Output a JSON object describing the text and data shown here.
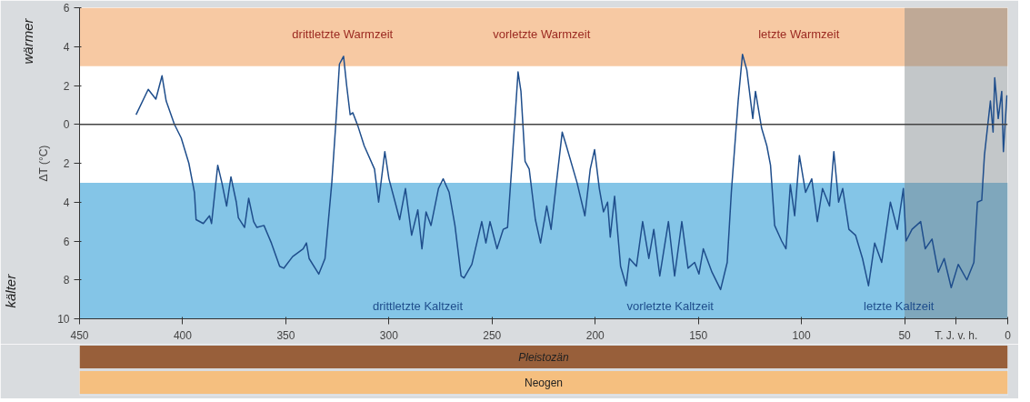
{
  "chart_data": {
    "type": "line",
    "ylabel": "ΔT (°C)",
    "x": [
      422.6,
      416.7,
      413,
      410,
      408,
      404,
      400.7,
      397,
      394.3,
      393.5,
      390,
      387,
      386,
      383,
      381,
      378.7,
      376.6,
      374,
      373,
      370,
      368,
      365.6,
      364,
      360.6,
      357,
      353,
      351,
      346.7,
      341.6,
      340,
      338.7,
      334,
      331,
      327.7,
      325.6,
      324,
      322,
      320.5,
      318.8,
      317.5,
      315,
      312,
      307,
      305,
      302,
      300,
      297,
      294.8,
      292,
      289,
      286,
      284,
      282,
      279.6,
      276,
      273.7,
      270.8,
      268,
      265,
      263.6,
      259.8,
      255,
      253,
      251,
      247.6,
      244.6,
      242.5,
      240.4,
      237.4,
      236,
      234,
      232,
      229,
      226.5,
      223.5,
      221.4,
      216,
      214,
      208.8,
      205,
      202.4,
      200.3,
      198,
      196,
      194,
      192.7,
      190.6,
      187.7,
      185,
      183.4,
      180,
      177,
      174,
      171.6,
      168.7,
      164.5,
      161.5,
      158,
      155,
      151.8,
      149.7,
      147.6,
      143.4,
      139.2,
      136,
      134,
      130.7,
      128.6,
      126.5,
      123.6,
      122.3,
      119.3,
      116.8,
      115,
      113,
      109.6,
      107.5,
      105.4,
      103.3,
      101,
      98,
      95,
      92.3,
      89.8,
      86.4,
      84.3,
      82,
      80,
      77,
      73.8,
      70.4,
      67.5,
      64.5,
      61.1,
      56.9,
      53.5,
      50.6,
      49.3,
      46.4,
      42.2,
      40,
      36.7,
      33.7,
      30.8,
      27.4,
      24,
      19.8,
      16.4,
      14.7,
      12.6,
      11.3,
      8.4,
      7.1,
      6.3,
      4.6,
      2.9,
      2.1,
      0.4
    ],
    "series": [
      {
        "color": "#1f4e8c",
        "values": [
          0.5,
          1.8,
          1.3,
          2.5,
          1.2,
          0.0,
          -0.7,
          -2,
          -3.5,
          -4.9,
          -5.1,
          -4.7,
          -5.1,
          -2.1,
          -3.0,
          -4.2,
          -2.7,
          -4,
          -4.8,
          -5.3,
          -3.8,
          -5.0,
          -5.3,
          -5.2,
          -6.1,
          -7.3,
          -7.4,
          -6.8,
          -6.4,
          -6.1,
          -6.9,
          -7.7,
          -6.9,
          -3.0,
          0.3,
          3.1,
          3.5,
          2.0,
          0.5,
          0.6,
          -0.1,
          -1.1,
          -2.3,
          -4.0,
          -1.4,
          -2.8,
          -4.0,
          -4.9,
          -3.3,
          -5.7,
          -4.4,
          -6.4,
          -4.5,
          -5.2,
          -3.3,
          -2.8,
          -3.5,
          -5.2,
          -7.8,
          -7.9,
          -7.2,
          -5.0,
          -6.1,
          -5.0,
          -6.4,
          -5.4,
          -5.3,
          -2.1,
          2.7,
          1.7,
          -1.9,
          -2.3,
          -4.9,
          -6.1,
          -4.2,
          -5.4,
          -0.4,
          -1.1,
          -3.0,
          -4.7,
          -2.3,
          -1.3,
          -3.3,
          -4.5,
          -4.0,
          -5.8,
          -3.7,
          -7.3,
          -8.3,
          -6.9,
          -7.3,
          -5.0,
          -6.9,
          -5.4,
          -7.8,
          -5.0,
          -7.8,
          -5.0,
          -7.4,
          -7.1,
          -7.7,
          -6.4,
          -7.6,
          -8.5,
          -7.1,
          -3.5,
          1.2,
          3.6,
          2.8,
          0.3,
          1.7,
          -0.2,
          -1.1,
          -2.1,
          -5.2,
          -6.0,
          -6.4,
          -3.1,
          -4.7,
          -1.6,
          -3.5,
          -2.8,
          -5.0,
          -3.3,
          -4.2,
          -1.4,
          -4.0,
          -3.3,
          -5.4,
          -5.7,
          -6.9,
          -8.3,
          -6.1,
          -7.1,
          -4.0,
          -5.4,
          -3.3,
          -6.0,
          -5.4,
          -5.0,
          -6.4,
          -5.9,
          -7.6,
          -6.9,
          -8.4,
          -7.2,
          -8.0,
          -7.1,
          -4.0,
          -3.9,
          -1.6,
          1.2,
          -0.4,
          2.4,
          0.3,
          1.7,
          -1.4,
          1.5
        ]
      }
    ],
    "xlim": [
      450,
      0
    ],
    "ylim": [
      -10,
      6
    ],
    "xticks": [
      450,
      400,
      350,
      300,
      250,
      200,
      150,
      100,
      50,
      {
        "value": 25,
        "label": "T. J. v. h."
      },
      0
    ],
    "yticks": [
      {
        "value": -10,
        "label": "10"
      },
      {
        "value": -8,
        "label": "8"
      },
      {
        "value": -6,
        "label": "6"
      },
      {
        "value": -4,
        "label": "4"
      },
      {
        "value": -2,
        "label": "2"
      },
      0,
      2,
      4,
      6
    ],
    "grid": false,
    "ref_lines": [
      {
        "axis": "y",
        "value": 0,
        "color": "#444444"
      }
    ],
    "bands": [
      {
        "axis": "y",
        "from": 3,
        "to": 6,
        "color": "#f6bf93"
      },
      {
        "axis": "y",
        "from": -10,
        "to": -3,
        "color": "#6fbbe3"
      },
      {
        "axis": "x",
        "from": 50,
        "to": 0,
        "color": "#7a8288"
      }
    ],
    "annotations": [
      "drittletzte Warmzeit",
      "vorletzte Warmzeit",
      "letzte Warmzeit",
      "drittletzte Kaltzeit",
      "vorletzte Kaltzeit",
      "letzte Kaltzeit",
      "wärmer",
      "kälter",
      "Pleistozän",
      "Neogen"
    ]
  }
}
